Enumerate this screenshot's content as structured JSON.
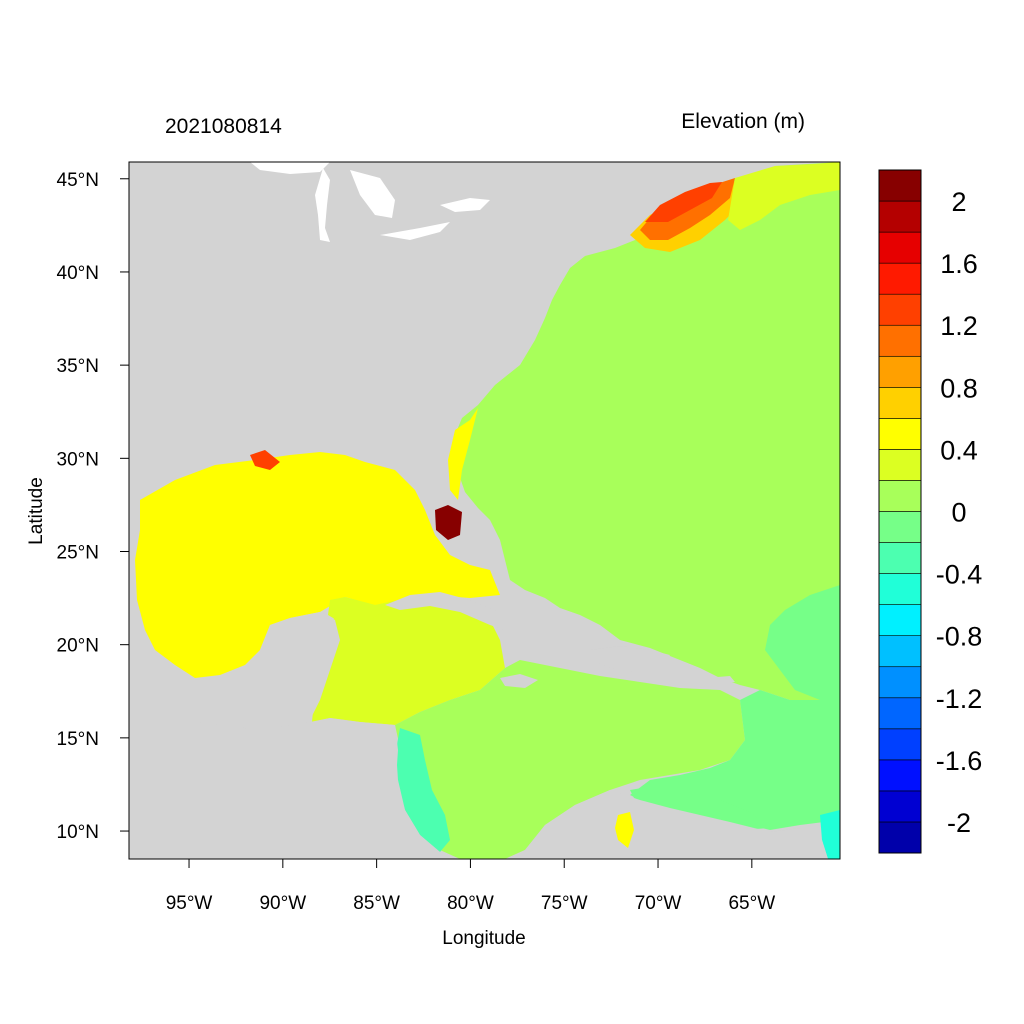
{
  "figure": {
    "timestamp": "2021080814",
    "field_title": "Elevation (m)",
    "xlabel": "Longitude",
    "ylabel": "Latitude"
  },
  "map": {
    "lon_range": [
      -98.2,
      -60.3
    ],
    "lat_range": [
      8.5,
      45.9
    ],
    "land_color": "#d3d3d3",
    "lake_color": "#ffffff",
    "x_ticks": [
      {
        "lon": -95,
        "label": "95°W"
      },
      {
        "lon": -90,
        "label": "90°W"
      },
      {
        "lon": -85,
        "label": "85°W"
      },
      {
        "lon": -80,
        "label": "80°W"
      },
      {
        "lon": -75,
        "label": "75°W"
      },
      {
        "lon": -70,
        "label": "70°W"
      },
      {
        "lon": -65,
        "label": "65°W"
      }
    ],
    "y_ticks": [
      {
        "lat": 45,
        "label": "45°N"
      },
      {
        "lat": 40,
        "label": "40°N"
      },
      {
        "lat": 35,
        "label": "35°N"
      },
      {
        "lat": 30,
        "label": "30°N"
      },
      {
        "lat": 25,
        "label": "25°N"
      },
      {
        "lat": 20,
        "label": "20°N"
      },
      {
        "lat": 15,
        "label": "15°N"
      },
      {
        "lat": 10,
        "label": "10°N"
      }
    ]
  },
  "colorbar": {
    "levels_min_to_max": [
      {
        "range": [
          -2.2,
          -2.0
        ],
        "color": "#0000aa"
      },
      {
        "range": [
          -2.0,
          -1.8
        ],
        "color": "#0000d2"
      },
      {
        "range": [
          -1.8,
          -1.6
        ],
        "color": "#0010ff"
      },
      {
        "range": [
          -1.6,
          -1.4
        ],
        "color": "#0040ff"
      },
      {
        "range": [
          -1.4,
          -1.2
        ],
        "color": "#0066ff"
      },
      {
        "range": [
          -1.2,
          -1.0
        ],
        "color": "#0090ff"
      },
      {
        "range": [
          -1.0,
          -0.8
        ],
        "color": "#00c0ff"
      },
      {
        "range": [
          -0.8,
          -0.6
        ],
        "color": "#00f0ff"
      },
      {
        "range": [
          -0.6,
          -0.4
        ],
        "color": "#20ffd8"
      },
      {
        "range": [
          -0.4,
          -0.2
        ],
        "color": "#4cffb0"
      },
      {
        "range": [
          -0.2,
          0.0
        ],
        "color": "#76ff88"
      },
      {
        "range": [
          0.0,
          0.2
        ],
        "color": "#a8ff5a"
      },
      {
        "range": [
          0.2,
          0.4
        ],
        "color": "#dcff22"
      },
      {
        "range": [
          0.4,
          0.6
        ],
        "color": "#ffff00"
      },
      {
        "range": [
          0.6,
          0.8
        ],
        "color": "#ffd000"
      },
      {
        "range": [
          0.8,
          1.0
        ],
        "color": "#ffa000"
      },
      {
        "range": [
          1.0,
          1.2
        ],
        "color": "#ff7000"
      },
      {
        "range": [
          1.2,
          1.4
        ],
        "color": "#ff4000"
      },
      {
        "range": [
          1.4,
          1.6
        ],
        "color": "#ff1a00"
      },
      {
        "range": [
          1.6,
          1.8
        ],
        "color": "#e60000"
      },
      {
        "range": [
          1.8,
          2.0
        ],
        "color": "#b40000"
      },
      {
        "range": [
          2.0,
          2.2
        ],
        "color": "#870000"
      }
    ],
    "labels": [
      {
        "value": 2.0,
        "text": "2"
      },
      {
        "value": 1.6,
        "text": "1.6"
      },
      {
        "value": 1.2,
        "text": "1.2"
      },
      {
        "value": 0.8,
        "text": "0.8"
      },
      {
        "value": 0.4,
        "text": "0.4"
      },
      {
        "value": 0.0,
        "text": "0"
      },
      {
        "value": -0.4,
        "text": "-0.4"
      },
      {
        "value": -0.8,
        "text": "-0.8"
      },
      {
        "value": -1.2,
        "text": "-1.2"
      },
      {
        "value": -1.6,
        "text": "-1.6"
      },
      {
        "value": -2.0,
        "text": "-2"
      }
    ]
  }
}
